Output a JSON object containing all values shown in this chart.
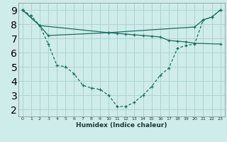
{
  "xlabel": "Humidex (Indice chaleur)",
  "bg_color": "#ceecea",
  "grid_color": "#aed4d0",
  "line_color": "#1a6e62",
  "xlim": [
    -0.5,
    23.5
  ],
  "ylim": [
    1.5,
    9.5
  ],
  "xticks": [
    0,
    1,
    2,
    3,
    4,
    5,
    6,
    7,
    8,
    9,
    10,
    11,
    12,
    13,
    14,
    15,
    16,
    17,
    18,
    19,
    20,
    21,
    22,
    23
  ],
  "yticks": [
    2,
    3,
    4,
    5,
    6,
    7,
    8,
    9
  ],
  "series1_x": [
    0,
    1,
    2,
    3,
    4,
    5,
    6,
    7,
    8,
    9,
    10,
    11,
    12,
    13,
    14,
    15,
    16,
    17,
    18,
    19,
    20,
    21,
    22,
    23
  ],
  "series1_y": [
    9.0,
    8.6,
    7.9,
    6.6,
    5.1,
    5.0,
    4.5,
    3.7,
    3.5,
    3.4,
    3.0,
    2.2,
    2.2,
    2.5,
    3.0,
    3.6,
    4.4,
    4.9,
    6.3,
    6.5,
    6.6,
    8.3,
    8.5,
    9.0
  ],
  "series2_x": [
    0,
    2,
    10,
    20,
    21,
    22,
    23
  ],
  "series2_y": [
    9.0,
    7.9,
    7.4,
    7.8,
    8.3,
    8.5,
    9.0
  ],
  "series3_x": [
    0,
    2,
    3,
    10,
    11,
    12,
    13,
    14,
    15,
    16,
    17,
    18,
    19,
    20,
    23
  ],
  "series3_y": [
    9.0,
    7.9,
    7.2,
    7.4,
    7.35,
    7.3,
    7.25,
    7.2,
    7.15,
    7.1,
    6.85,
    6.8,
    6.75,
    6.65,
    6.6
  ]
}
